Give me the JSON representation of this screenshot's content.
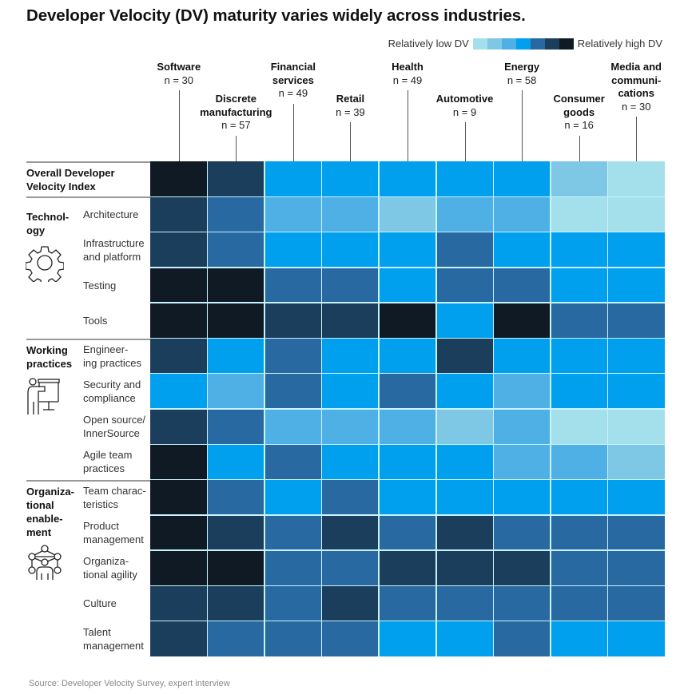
{
  "title": "Developer Velocity (DV) maturity varies widely across industries.",
  "legend": {
    "low_label": "Relatively low DV",
    "high_label": "Relatively high DV",
    "scale_colors": [
      "#a4e0ec",
      "#7ec8e5",
      "#4fb0e6",
      "#00a0ee",
      "#2769a0",
      "#1b3e5c",
      "#0f1a24"
    ]
  },
  "chart_data": {
    "type": "heatmap",
    "title": "Developer Velocity (DV) maturity varies widely across industries.",
    "value_scale": "ordinal 0 (relatively low DV) to 6 (relatively high DV)",
    "columns": [
      {
        "name": "Software",
        "n": "n = 30"
      },
      {
        "name": "Discrete manufacturing",
        "n": "n = 57"
      },
      {
        "name": "Financial services",
        "n": "n = 49"
      },
      {
        "name": "Retail",
        "n": "n = 39"
      },
      {
        "name": "Health",
        "n": "n = 49"
      },
      {
        "name": "Automotive",
        "n": "n = 9"
      },
      {
        "name": "Energy",
        "n": "n = 58"
      },
      {
        "name": "Consumer goods",
        "n": "n = 16"
      },
      {
        "name": "Media and communications",
        "n": "n = 30"
      }
    ],
    "rows": [
      {
        "group": "",
        "label": "Overall Developer Velocity Index",
        "values": [
          6,
          5,
          3,
          3,
          3,
          3,
          3,
          1,
          0
        ]
      },
      {
        "group": "Technology",
        "label": "Architecture",
        "values": [
          5,
          4,
          2,
          2,
          1,
          2,
          2,
          0,
          0
        ]
      },
      {
        "group": "Technology",
        "label": "Infrastructure and platform",
        "values": [
          5,
          4,
          3,
          3,
          3,
          4,
          3,
          3,
          3
        ]
      },
      {
        "group": "Technology",
        "label": "Testing",
        "values": [
          6,
          6,
          4,
          4,
          3,
          4,
          4,
          3,
          3
        ]
      },
      {
        "group": "Technology",
        "label": "Tools",
        "values": [
          6,
          6,
          5,
          5,
          6,
          3,
          6,
          4,
          4
        ]
      },
      {
        "group": "Working practices",
        "label": "Engineering practices",
        "values": [
          5,
          3,
          4,
          3,
          3,
          5,
          3,
          3,
          3
        ]
      },
      {
        "group": "Working practices",
        "label": "Security and compliance",
        "values": [
          3,
          2,
          4,
          3,
          4,
          3,
          2,
          3,
          3
        ]
      },
      {
        "group": "Working practices",
        "label": "Open source/InnerSource",
        "values": [
          5,
          4,
          2,
          2,
          2,
          1,
          2,
          0,
          0
        ]
      },
      {
        "group": "Working practices",
        "label": "Agile team practices",
        "values": [
          6,
          3,
          4,
          3,
          3,
          3,
          2,
          2,
          1
        ]
      },
      {
        "group": "Organizational enablement",
        "label": "Team characteristics",
        "values": [
          6,
          4,
          3,
          4,
          3,
          3,
          3,
          3,
          3
        ]
      },
      {
        "group": "Organizational enablement",
        "label": "Product management",
        "values": [
          6,
          5,
          4,
          5,
          4,
          5,
          4,
          4,
          4
        ]
      },
      {
        "group": "Organizational enablement",
        "label": "Organizational agility",
        "values": [
          6,
          6,
          4,
          4,
          5,
          5,
          5,
          4,
          4
        ]
      },
      {
        "group": "Organizational enablement",
        "label": "Culture",
        "values": [
          5,
          5,
          4,
          5,
          4,
          4,
          4,
          4,
          4
        ]
      },
      {
        "group": "Organizational enablement",
        "label": "Talent management",
        "values": [
          5,
          4,
          4,
          4,
          3,
          3,
          4,
          3,
          3
        ]
      }
    ]
  },
  "headers": [
    {
      "name_lines": [
        "Software"
      ],
      "n": "n = 30"
    },
    {
      "name_lines": [
        "Discrete",
        "manufacturing"
      ],
      "n": "n = 57"
    },
    {
      "name_lines": [
        "Financial",
        "services"
      ],
      "n": "n = 49"
    },
    {
      "name_lines": [
        "Retail"
      ],
      "n": "n = 39"
    },
    {
      "name_lines": [
        "Health"
      ],
      "n": "n = 49"
    },
    {
      "name_lines": [
        "Automotive"
      ],
      "n": "n = 9"
    },
    {
      "name_lines": [
        "Energy"
      ],
      "n": "n = 58"
    },
    {
      "name_lines": [
        "Consumer",
        "goods"
      ],
      "n": "n = 16"
    },
    {
      "name_lines": [
        "Media and",
        "communi-",
        "cations"
      ],
      "n": "n = 30"
    }
  ],
  "overall_label": [
    "Overall Developer",
    "Velocity Index"
  ],
  "groups": [
    {
      "label_lines": [
        "Technol-",
        "ogy"
      ],
      "icon": "gear-icon"
    },
    {
      "label_lines": [
        "Working",
        "practices"
      ],
      "icon": "presenter-icon"
    },
    {
      "label_lines": [
        "Organiza-",
        "tional",
        "enable-",
        "ment"
      ],
      "icon": "network-people-icon"
    }
  ],
  "row_labels": [
    [
      "Architecture"
    ],
    [
      "Infrastructure",
      "and platform"
    ],
    [
      "Testing"
    ],
    [
      "Tools"
    ],
    [
      "Engineer-",
      "ing practices"
    ],
    [
      "Security and",
      "compliance"
    ],
    [
      "Open source/",
      "InnerSource"
    ],
    [
      "Agile team",
      "practices"
    ],
    [
      "Team charac-",
      "teristics"
    ],
    [
      "Product",
      "management"
    ],
    [
      "Organiza-",
      "tional agility"
    ],
    [
      "Culture"
    ],
    [
      "Talent",
      "management"
    ]
  ],
  "source": "Source: Developer Velocity Survey, expert interview"
}
